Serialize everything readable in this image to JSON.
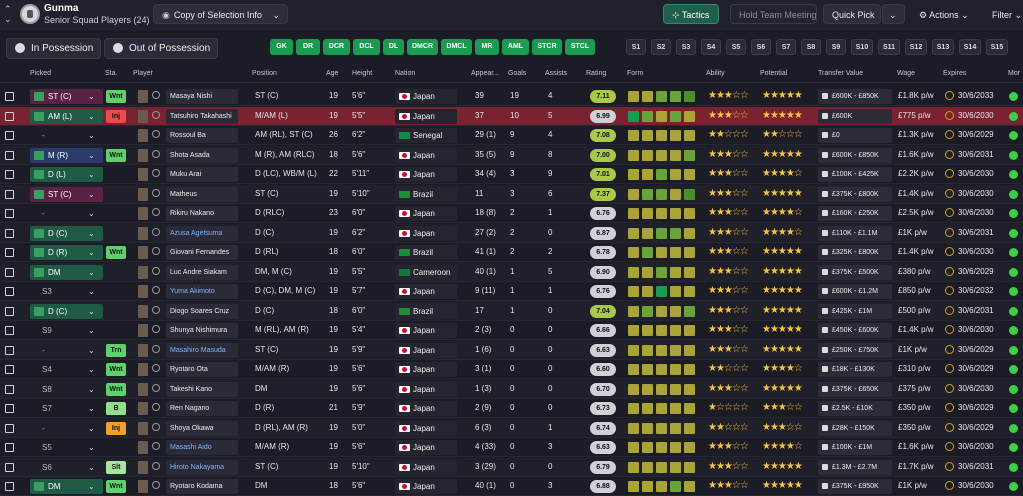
{
  "header": {
    "back_glyph": "⌃\n⌄",
    "club_name": "Gunma",
    "squad_name": "Senior Squad Players (24)",
    "selection_button": "Copy of Selection Info",
    "tactics_button": "Tactics",
    "hold_meeting_button": "Hold Team Meeting",
    "quick_pick_button": "Quick Pick",
    "actions_button": "Actions",
    "filter_button": "Filter"
  },
  "possession": {
    "in": "In Possession",
    "out": "Out of Possession"
  },
  "position_chips": [
    "GK",
    "DR",
    "DCR",
    "DCL",
    "DL",
    "DMCR",
    "DMCL",
    "MR",
    "AML",
    "STCR",
    "STCL"
  ],
  "sub_chips": [
    "S1",
    "S2",
    "S3",
    "S4",
    "S5",
    "S6",
    "S7",
    "S8",
    "S9",
    "S10",
    "S11",
    "S12",
    "S13",
    "S14",
    "S15"
  ],
  "columns": {
    "picked": "Picked",
    "sta": "Sta.",
    "player": "Player",
    "position": "Position",
    "age": "Age",
    "height": "Height",
    "nation": "Nation",
    "apps": "Appear...",
    "goals": "Goals",
    "assists": "Assists",
    "rating": "Rating",
    "form": "Form",
    "ability": "Ability",
    "potential": "Potential",
    "transfer_value": "Transfer Value",
    "wage": "Wage",
    "expires": "Expires",
    "more": "Mor"
  },
  "colors": {
    "accent_green": "#1b9a52",
    "rating_high": "#a8c94a",
    "rating_mid": "#d0d0d6",
    "star": "#f5c542",
    "status_wnt": "#5fd16a",
    "status_inj": "#e84c4c",
    "status_trn": "#5fd16a",
    "status_b": "#8fe08a",
    "status_slt": "#a7e4a0",
    "status_inj2": "#f2a02a"
  },
  "rows": [
    {
      "picked": "ST (C)",
      "picked_style": "c2",
      "sta": "Wnt",
      "sta_color": "#5fd16a",
      "name": "Masaya Nishi",
      "link": false,
      "position": "ST (C)",
      "age": "19",
      "height": "5'6\"",
      "nation": "Japan",
      "flag": "jp",
      "apps": "39",
      "goals": "19",
      "assists": "4",
      "rating": "7.11",
      "rating_color": "#a8c94a",
      "form": [
        "#a8a43a",
        "#a8a43a",
        "#6aa33a",
        "#6aa33a",
        "#4a8f2c"
      ],
      "ability": "★★★☆☆",
      "potential": "★★★★★",
      "value": "£600K - £850K",
      "wage": "£1.8K p/w",
      "expires": "30/6/2033",
      "more_color": "#3ecf4a"
    },
    {
      "picked": "AM (L)",
      "picked_style": "c1",
      "sta": "Inj",
      "sta_color": "#e84c4c",
      "name": "Tatsuhiro Takahashi",
      "link": false,
      "position": "M/AM (L)",
      "age": "19",
      "height": "5'5\"",
      "nation": "Japan",
      "flag": "jp",
      "apps": "37",
      "goals": "10",
      "assists": "5",
      "rating": "6.99",
      "rating_color": "#d0d0d6",
      "form": [
        "#1b9a52",
        "#6aa33a",
        "#a8a43a",
        "#6aa33a",
        "#a8a43a"
      ],
      "ability": "★★★☆☆",
      "potential": "★★★★★",
      "value": "£600K",
      "wage": "£775 p/w",
      "expires": "30/6/2030",
      "more_color": "#3ecf4a",
      "selected": true
    },
    {
      "picked": "-",
      "picked_style": "none",
      "sta": "",
      "sta_color": "",
      "name": "Rossoul Ba",
      "link": false,
      "position": "AM (RL), ST (C)",
      "age": "26",
      "height": "6'2\"",
      "nation": "Senegal",
      "flag": "sn",
      "apps": "29 (1)",
      "goals": "9",
      "assists": "4",
      "rating": "7.08",
      "rating_color": "#a8c94a",
      "form": [
        "#a8a43a",
        "#a8a43a",
        "#a8a43a",
        "#a8a43a",
        "#a8a43a"
      ],
      "ability": "★★☆☆☆",
      "potential": "★★☆☆☆",
      "value": "£0",
      "wage": "£1.3K p/w",
      "expires": "30/6/2029",
      "more_color": "#3ecf4a"
    },
    {
      "picked": "M (R)",
      "picked_style": "c3",
      "sta": "Wnt",
      "sta_color": "#5fd16a",
      "name": "Shota Asada",
      "link": false,
      "position": "M (R), AM (RLC)",
      "age": "18",
      "height": "5'6\"",
      "nation": "Japan",
      "flag": "jp",
      "apps": "35 (5)",
      "goals": "9",
      "assists": "8",
      "rating": "7.00",
      "rating_color": "#a8c94a",
      "form": [
        "#a8a43a",
        "#a8a43a",
        "#a8a43a",
        "#a8a43a",
        "#6aa33a"
      ],
      "ability": "★★★☆☆",
      "potential": "★★★★★",
      "value": "£600K - £850K",
      "wage": "£1.6K p/w",
      "expires": "30/6/2031",
      "more_color": "#3ecf4a"
    },
    {
      "picked": "D (L)",
      "picked_style": "c1",
      "sta": "",
      "sta_color": "",
      "name": "Muku Arai",
      "link": false,
      "position": "D (LC), WB/M (L)",
      "age": "22",
      "height": "5'11\"",
      "nation": "Japan",
      "flag": "jp",
      "apps": "34 (4)",
      "goals": "3",
      "assists": "9",
      "rating": "7.01",
      "rating_color": "#a8c94a",
      "form": [
        "#a8a43a",
        "#a8a43a",
        "#6aa33a",
        "#a8a43a",
        "#a8a43a"
      ],
      "ability": "★★★☆☆",
      "potential": "★★★★☆",
      "value": "£100K - £425K",
      "wage": "£2.2K p/w",
      "expires": "30/6/2030",
      "more_color": "#3ecf4a"
    },
    {
      "picked": "ST (C)",
      "picked_style": "c2",
      "sta": "",
      "sta_color": "",
      "name": "Matheus",
      "link": false,
      "position": "ST (C)",
      "age": "19",
      "height": "5'10\"",
      "nation": "Brazil",
      "flag": "br",
      "apps": "11",
      "goals": "3",
      "assists": "6",
      "rating": "7.37",
      "rating_color": "#a8c94a",
      "form": [
        "#a8a43a",
        "#6aa33a",
        "#6aa33a",
        "#a8a43a",
        "#4a8f2c"
      ],
      "ability": "★★★☆☆",
      "potential": "★★★★★",
      "value": "£375K - £800K",
      "wage": "£1.4K p/w",
      "expires": "30/6/2030",
      "more_color": "#3ecf4a"
    },
    {
      "picked": "-",
      "picked_style": "none",
      "sta": "",
      "sta_color": "",
      "name": "Rikiru Nakano",
      "link": false,
      "position": "D (RLC)",
      "age": "23",
      "height": "6'0\"",
      "nation": "Japan",
      "flag": "jp",
      "apps": "18 (8)",
      "goals": "2",
      "assists": "1",
      "rating": "6.76",
      "rating_color": "#d0d0d6",
      "form": [
        "#a8a43a",
        "#a8a43a",
        "#a8a43a",
        "#a8a43a",
        "#a8a43a"
      ],
      "ability": "★★★☆☆",
      "potential": "★★★★☆",
      "value": "£160K - £250K",
      "wage": "£2.5K p/w",
      "expires": "30/6/2030",
      "more_color": "#3ecf4a"
    },
    {
      "picked": "D (C)",
      "picked_style": "c1",
      "sta": "",
      "sta_color": "",
      "name": "Azusa Agetsuma",
      "link": true,
      "position": "D (C)",
      "age": "19",
      "height": "6'2\"",
      "nation": "Japan",
      "flag": "jp",
      "apps": "27 (2)",
      "goals": "2",
      "assists": "0",
      "rating": "6.87",
      "rating_color": "#d0d0d6",
      "form": [
        "#a8a43a",
        "#a8a43a",
        "#6aa33a",
        "#6aa33a",
        "#a8a43a"
      ],
      "ability": "★★★☆☆",
      "potential": "★★★★☆",
      "value": "£110K - £1.1M",
      "wage": "£1K p/w",
      "expires": "30/6/2031",
      "more_color": "#3ecf4a"
    },
    {
      "picked": "D (R)",
      "picked_style": "c1",
      "sta": "Wnt",
      "sta_color": "#5fd16a",
      "name": "Giovani Fernandes",
      "link": false,
      "position": "D (RL)",
      "age": "18",
      "height": "6'0\"",
      "nation": "Brazil",
      "flag": "br",
      "apps": "41 (1)",
      "goals": "2",
      "assists": "2",
      "rating": "6.78",
      "rating_color": "#d0d0d6",
      "form": [
        "#a8a43a",
        "#6aa33a",
        "#a8a43a",
        "#a8a43a",
        "#a8a43a"
      ],
      "ability": "★★★☆☆",
      "potential": "★★★★★",
      "value": "£325K - £800K",
      "wage": "£1.4K p/w",
      "expires": "30/6/2030",
      "more_color": "#3ecf4a"
    },
    {
      "picked": "DM",
      "picked_style": "c1",
      "sta": "",
      "sta_color": "",
      "name": "Luc Andre Siakam",
      "link": false,
      "position": "DM, M (C)",
      "age": "19",
      "height": "5'5\"",
      "nation": "Cameroon",
      "flag": "cm",
      "apps": "40 (1)",
      "goals": "1",
      "assists": "5",
      "rating": "6.90",
      "rating_color": "#d0d0d6",
      "form": [
        "#a8a43a",
        "#a8a43a",
        "#6aa33a",
        "#a8a43a",
        "#a8a43a"
      ],
      "ability": "★★★☆☆",
      "potential": "★★★★★",
      "value": "£375K - £500K",
      "wage": "£380 p/w",
      "expires": "30/6/2029",
      "more_color": "#3ecf4a"
    },
    {
      "picked": "S3",
      "picked_style": "none",
      "sta": "",
      "sta_color": "",
      "name": "Yuma Akimoto",
      "link": true,
      "position": "D (C), DM, M (C)",
      "age": "19",
      "height": "5'7\"",
      "nation": "Japan",
      "flag": "jp",
      "apps": "9 (11)",
      "goals": "1",
      "assists": "1",
      "rating": "6.76",
      "rating_color": "#d0d0d6",
      "form": [
        "#a8a43a",
        "#a8a43a",
        "#1b9a52",
        "#a8a43a",
        "#a8a43a"
      ],
      "ability": "★★★☆☆",
      "potential": "★★★★★",
      "value": "£600K - £1.2M",
      "wage": "£850 p/w",
      "expires": "30/6/2032",
      "more_color": "#3ecf4a"
    },
    {
      "picked": "D (C)",
      "picked_style": "c1",
      "sta": "",
      "sta_color": "",
      "name": "Diogo Soares Cruz",
      "link": false,
      "position": "D (C)",
      "age": "18",
      "height": "6'0\"",
      "nation": "Brazil",
      "flag": "br",
      "apps": "17",
      "goals": "1",
      "assists": "0",
      "rating": "7.04",
      "rating_color": "#a8c94a",
      "form": [
        "#a8a43a",
        "#6aa33a",
        "#a8a43a",
        "#a8a43a",
        "#6aa33a"
      ],
      "ability": "★★★☆☆",
      "potential": "★★★★★",
      "value": "£425K - £1M",
      "wage": "£500 p/w",
      "expires": "30/6/2031",
      "more_color": "#3ecf4a"
    },
    {
      "picked": "S9",
      "picked_style": "none",
      "sta": "",
      "sta_color": "",
      "name": "Shunya Nishimura",
      "link": false,
      "position": "M (RL), AM (R)",
      "age": "19",
      "height": "5'4\"",
      "nation": "Japan",
      "flag": "jp",
      "apps": "2 (3)",
      "goals": "0",
      "assists": "0",
      "rating": "6.66",
      "rating_color": "#d0d0d6",
      "form": [
        "#a8a43a",
        "#a8a43a",
        "#a8a43a",
        "#a8a43a",
        "#a8a43a"
      ],
      "ability": "★★★☆☆",
      "potential": "★★★★★",
      "value": "£450K - £600K",
      "wage": "£1.4K p/w",
      "expires": "30/6/2030",
      "more_color": "#3ecf4a"
    },
    {
      "picked": "-",
      "picked_style": "none",
      "sta": "Trn",
      "sta_color": "#5fd16a",
      "name": "Masahiro Masuda",
      "link": true,
      "position": "ST (C)",
      "age": "19",
      "height": "5'9\"",
      "nation": "Japan",
      "flag": "jp",
      "apps": "1 (6)",
      "goals": "0",
      "assists": "0",
      "rating": "6.63",
      "rating_color": "#d0d0d6",
      "form": [
        "#a8a43a",
        "#a8a43a",
        "#a8a43a",
        "#a8a43a",
        "#a8a43a"
      ],
      "ability": "★★★☆☆",
      "potential": "★★★★★",
      "value": "£250K - £750K",
      "wage": "£1K p/w",
      "expires": "30/6/2029",
      "more_color": "#3ecf4a"
    },
    {
      "picked": "S4",
      "picked_style": "none",
      "sta": "Wnt",
      "sta_color": "#5fd16a",
      "name": "Ryotaro Ota",
      "link": false,
      "position": "M/AM (R)",
      "age": "19",
      "height": "5'6\"",
      "nation": "Japan",
      "flag": "jp",
      "apps": "3 (1)",
      "goals": "0",
      "assists": "0",
      "rating": "6.60",
      "rating_color": "#d0d0d6",
      "form": [
        "#a8a43a",
        "#a8a43a",
        "#a8a43a",
        "#a8a43a",
        "#a8a43a"
      ],
      "ability": "★★☆☆☆",
      "potential": "★★★★☆",
      "value": "£18K - £130K",
      "wage": "£310 p/w",
      "expires": "30/6/2029",
      "more_color": "#3ecf4a"
    },
    {
      "picked": "S8",
      "picked_style": "none",
      "sta": "Wnt",
      "sta_color": "#5fd16a",
      "name": "Takeshi Kano",
      "link": false,
      "position": "DM",
      "age": "19",
      "height": "5'6\"",
      "nation": "Japan",
      "flag": "jp",
      "apps": "1 (3)",
      "goals": "0",
      "assists": "0",
      "rating": "6.70",
      "rating_color": "#d0d0d6",
      "form": [
        "#a8a43a",
        "#a8a43a",
        "#a8a43a",
        "#a8a43a",
        "#a8a43a"
      ],
      "ability": "★★★☆☆",
      "potential": "★★★★★",
      "value": "£375K - £650K",
      "wage": "£375 p/w",
      "expires": "30/6/2030",
      "more_color": "#3ecf4a"
    },
    {
      "picked": "S7",
      "picked_style": "none",
      "sta": "B",
      "sta_color": "#8fe08a",
      "name": "Ren Nagano",
      "link": false,
      "position": "D (R)",
      "age": "21",
      "height": "5'9\"",
      "nation": "Japan",
      "flag": "jp",
      "apps": "2 (9)",
      "goals": "0",
      "assists": "0",
      "rating": "6.73",
      "rating_color": "#d0d0d6",
      "form": [
        "#a8a43a",
        "#a8a43a",
        "#a8a43a",
        "#a8a43a",
        "#a8a43a"
      ],
      "ability": "★☆☆☆☆",
      "potential": "★★★☆☆",
      "value": "£2.5K - £10K",
      "wage": "£350 p/w",
      "expires": "30/6/2029",
      "more_color": "#3ecf4a"
    },
    {
      "picked": "-",
      "picked_style": "none",
      "sta": "Inj",
      "sta_color": "#f2a02a",
      "name": "Shoya Okawa",
      "link": false,
      "position": "D (RL), AM (R)",
      "age": "19",
      "height": "5'0\"",
      "nation": "Japan",
      "flag": "jp",
      "apps": "6 (3)",
      "goals": "0",
      "assists": "1",
      "rating": "6.74",
      "rating_color": "#d0d0d6",
      "form": [
        "#a8a43a",
        "#a8a43a",
        "#a8a43a",
        "#a8a43a",
        "#a8a43a"
      ],
      "ability": "★★☆☆☆",
      "potential": "★★★☆☆",
      "value": "£28K - £150K",
      "wage": "£350 p/w",
      "expires": "30/6/2029",
      "more_color": "#3ecf4a"
    },
    {
      "picked": "S5",
      "picked_style": "none",
      "sta": "",
      "sta_color": "",
      "name": "Masashi Aido",
      "link": true,
      "position": "M/AM (R)",
      "age": "19",
      "height": "5'6\"",
      "nation": "Japan",
      "flag": "jp",
      "apps": "4 (33)",
      "goals": "0",
      "assists": "3",
      "rating": "6.63",
      "rating_color": "#d0d0d6",
      "form": [
        "#a8a43a",
        "#a8a43a",
        "#a8a43a",
        "#a8a43a",
        "#a8a43a"
      ],
      "ability": "★★★☆☆",
      "potential": "★★★★☆",
      "value": "£100K - £1M",
      "wage": "£1.6K p/w",
      "expires": "30/6/2030",
      "more_color": "#3ecf4a"
    },
    {
      "picked": "S6",
      "picked_style": "none",
      "sta": "Slt",
      "sta_color": "#a7e4a0",
      "name": "Hiroto Nakayama",
      "link": true,
      "position": "ST (C)",
      "age": "19",
      "height": "5'10\"",
      "nation": "Japan",
      "flag": "jp",
      "apps": "3 (29)",
      "goals": "0",
      "assists": "0",
      "rating": "6.79",
      "rating_color": "#d0d0d6",
      "form": [
        "#a8a43a",
        "#a8a43a",
        "#a8a43a",
        "#a8a43a",
        "#a8a43a"
      ],
      "ability": "★★★☆☆",
      "potential": "★★★★★",
      "value": "£1.3M - £2.7M",
      "wage": "£1.7K p/w",
      "expires": "30/6/2031",
      "more_color": "#3ecf4a"
    },
    {
      "picked": "DM",
      "picked_style": "c1",
      "sta": "Wnt",
      "sta_color": "#5fd16a",
      "name": "Ryotaro Kodama",
      "link": false,
      "position": "DM",
      "age": "18",
      "height": "5'6\"",
      "nation": "Japan",
      "flag": "jp",
      "apps": "40 (1)",
      "goals": "0",
      "assists": "3",
      "rating": "6.88",
      "rating_color": "#d0d0d6",
      "form": [
        "#a8a43a",
        "#a8a43a",
        "#a8a43a",
        "#6aa33a",
        "#a8a43a"
      ],
      "ability": "★★★☆☆",
      "potential": "★★★★★",
      "value": "£375K - £950K",
      "wage": "£1K p/w",
      "expires": "30/6/2030",
      "more_color": "#3ecf4a"
    }
  ]
}
